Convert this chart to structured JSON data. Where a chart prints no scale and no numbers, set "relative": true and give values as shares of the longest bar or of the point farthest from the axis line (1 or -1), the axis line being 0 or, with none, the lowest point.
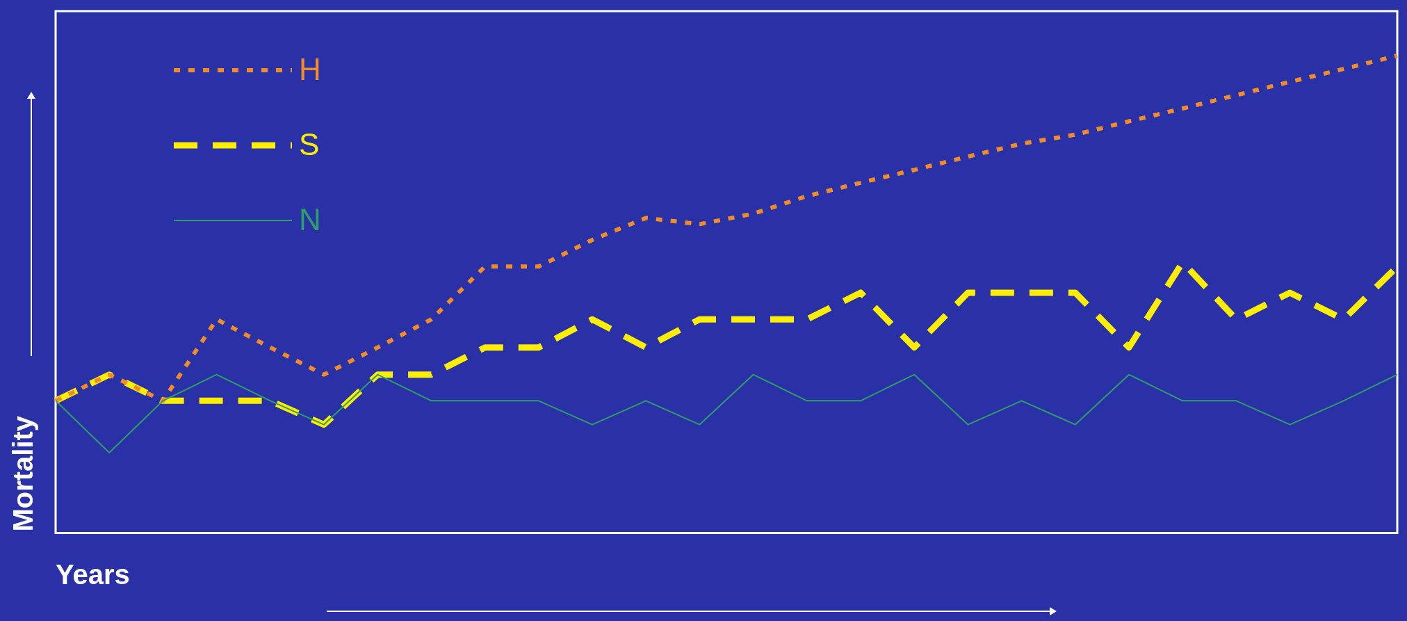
{
  "chart_data": {
    "type": "line",
    "relative": true,
    "xlabel": "Years",
    "ylabel": "Mortality",
    "legend": "top left",
    "grid": false,
    "categories": [
      null,
      null,
      null,
      null,
      null,
      null,
      null,
      null,
      null,
      null,
      null,
      null,
      null,
      null,
      null,
      null,
      null,
      null,
      null,
      null,
      null,
      null,
      null,
      null,
      null,
      null
    ],
    "series": [
      {
        "name": "H",
        "color": "#f28c28",
        "line_style": "dotted",
        "values": [
          0.275,
          0.33,
          0.275,
          0.446,
          0.387,
          0.33,
          0.387,
          0.446,
          0.557,
          0.557,
          0.613,
          0.659,
          0.646,
          0.668,
          0.705,
          0.733,
          0.76,
          0.788,
          0.815,
          0.834,
          0.862,
          0.889,
          0.917,
          0.945,
          0.972,
          1
        ]
      },
      {
        "name": "S",
        "color": "#ffee00",
        "line_style": "dashed",
        "values": [
          0.275,
          0.33,
          0.275,
          0.275,
          0.275,
          0.225,
          0.33,
          0.33,
          0.387,
          0.387,
          0.446,
          0.387,
          0.446,
          0.446,
          0.446,
          0.502,
          0.387,
          0.502,
          0.502,
          0.502,
          0.387,
          0.566,
          0.446,
          0.502,
          0.446,
          0.557
        ]
      },
      {
        "name": "N",
        "color": "#2e9e6a",
        "line_style": "solid",
        "values": [
          0.275,
          0.166,
          0.275,
          0.33,
          0.275,
          0.225,
          0.33,
          0.275,
          0.275,
          0.275,
          0.225,
          0.275,
          0.225,
          0.33,
          0.275,
          0.275,
          0.33,
          0.225,
          0.275,
          0.225,
          0.33,
          0.275,
          0.275,
          0.225,
          0.275,
          0.33
        ]
      }
    ]
  }
}
